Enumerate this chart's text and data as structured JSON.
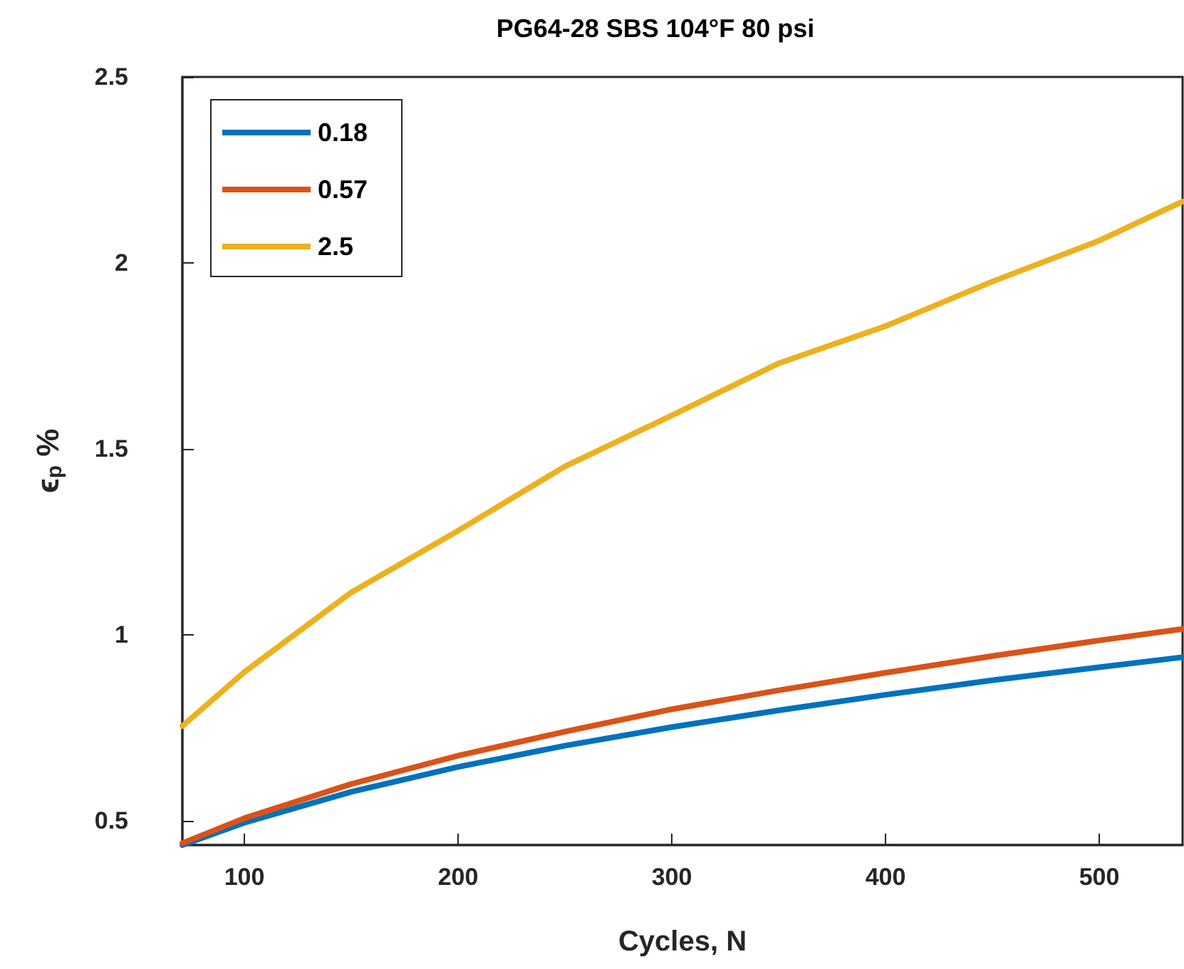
{
  "chart_data": {
    "type": "line",
    "title": "PG64-28 SBS 104°F 80 psi",
    "xlabel": "Cycles, N",
    "ylabel": "ϵ$_{p}$ %",
    "x": [
      71,
      100,
      150,
      200,
      250,
      300,
      350,
      400,
      450,
      500,
      539
    ],
    "series": [
      {
        "name": "0.18",
        "color": "#0072bd",
        "values": [
          0.435,
          0.495,
          0.578,
          0.645,
          0.702,
          0.752,
          0.797,
          0.839,
          0.878,
          0.913,
          0.94
        ]
      },
      {
        "name": "0.57",
        "color": "#d95319",
        "values": [
          0.44,
          0.507,
          0.599,
          0.675,
          0.74,
          0.8,
          0.851,
          0.898,
          0.943,
          0.985,
          1.016
        ]
      },
      {
        "name": "2.5",
        "color": "#edb120",
        "values": [
          0.755,
          0.9,
          1.114,
          1.28,
          1.453,
          1.59,
          1.73,
          1.83,
          1.95,
          2.06,
          2.165
        ]
      }
    ],
    "xlim": [
      71,
      539
    ],
    "xticks": [
      100,
      200,
      300,
      400,
      500
    ],
    "ylim": [
      0.435,
      2.5
    ],
    "yticks": [
      0.5,
      1,
      1.5,
      2,
      2.5
    ],
    "grid": false,
    "legend": "top left",
    "marker": "none",
    "line_style": "solid"
  }
}
